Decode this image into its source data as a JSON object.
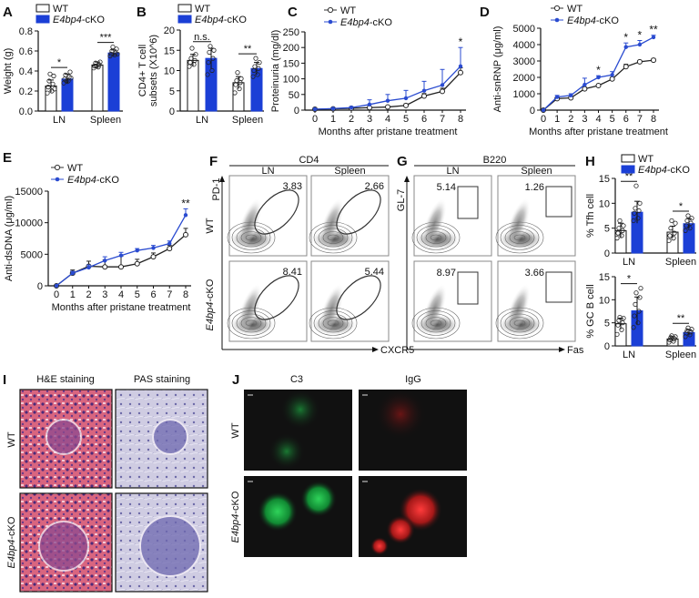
{
  "panel_labels": {
    "A": "A",
    "B": "B",
    "C": "C",
    "D": "D",
    "E": "E",
    "F": "F",
    "G": "G",
    "H": "H",
    "I": "I",
    "J": "J"
  },
  "colors": {
    "wt_fill": "#ffffff",
    "ko_fill": "#1b3fd6",
    "ko_line": "#2a4bd0",
    "wt_line": "#222222"
  },
  "chart_data": [
    {
      "id": "A",
      "type": "bar",
      "ylabel": "Weight (g)",
      "ylim": [
        0,
        0.8
      ],
      "yticks": [
        0,
        0.2,
        0.4,
        0.6,
        0.8
      ],
      "ytick_labels": [
        "0.0",
        "0.2",
        "0.4",
        "0.6",
        "0.8"
      ],
      "categories": [
        "LN",
        "Spleen"
      ],
      "significance": [
        "*",
        "***"
      ],
      "series": [
        {
          "name": "WT",
          "mean": [
            0.25,
            0.46
          ],
          "sd": [
            0.06,
            0.03
          ],
          "points": [
            [
              0.18,
              0.2,
              0.24,
              0.27,
              0.3,
              0.35,
              0.37,
              0.22
            ],
            [
              0.43,
              0.44,
              0.45,
              0.46,
              0.48,
              0.49,
              0.45
            ]
          ]
        },
        {
          "name_italic": "E4bp4",
          "name_suffix": "-cKO",
          "mean": [
            0.32,
            0.58
          ],
          "sd": [
            0.05,
            0.03
          ],
          "points": [
            [
              0.28,
              0.3,
              0.32,
              0.34,
              0.36,
              0.39,
              0.3,
              0.33
            ],
            [
              0.55,
              0.56,
              0.57,
              0.58,
              0.6,
              0.62,
              0.64,
              0.57
            ]
          ]
        }
      ]
    },
    {
      "id": "B",
      "type": "bar",
      "ylabel": "CD4+ T cell",
      "ylabel2": "subsets (X10^6)",
      "ylim": [
        0,
        20
      ],
      "yticks": [
        0,
        5,
        10,
        15,
        20
      ],
      "ytick_labels": [
        "0",
        "5",
        "10",
        "15",
        "20"
      ],
      "categories": [
        "LN",
        "Spleen"
      ],
      "significance": [
        "n.s.",
        "**"
      ],
      "series": [
        {
          "name": "WT",
          "mean": [
            12.5,
            7
          ],
          "sd": [
            1.5,
            1.5
          ],
          "points": [
            [
              11,
              11.5,
              12,
              12.5,
              13,
              14,
              15.5
            ],
            [
              4.5,
              5.5,
              6.5,
              7,
              7.5,
              8,
              9.5
            ]
          ]
        },
        {
          "name_italic": "E4bp4",
          "name_suffix": "-cKO",
          "mean": [
            13,
            10.5
          ],
          "sd": [
            2.5,
            1.5
          ],
          "points": [
            [
              9,
              10,
              12,
              13,
              14.5,
              15,
              16
            ],
            [
              8.5,
              9,
              10,
              10.5,
              11,
              12,
              13
            ]
          ]
        }
      ]
    },
    {
      "id": "C",
      "type": "line",
      "ylabel": "Proteinuria (mg/dl)",
      "xlabel": "Months after pristane treatment",
      "ylim": [
        0,
        250
      ],
      "yticks": [
        0,
        50,
        100,
        150,
        200,
        250
      ],
      "x": [
        0,
        1,
        2,
        3,
        4,
        5,
        6,
        7,
        8
      ],
      "significance": {
        "8": "*"
      },
      "series": [
        {
          "name": "WT",
          "values": [
            3,
            4,
            6,
            8,
            10,
            15,
            45,
            60,
            120
          ],
          "err": [
            1,
            1,
            2,
            3,
            4,
            5,
            8,
            10,
            15
          ]
        },
        {
          "name_italic": "E4bp4",
          "name_suffix": "-cKO",
          "values": [
            3,
            5,
            8,
            18,
            30,
            38,
            62,
            80,
            140
          ],
          "err": [
            1,
            1,
            3,
            15,
            20,
            25,
            30,
            50,
            60
          ]
        }
      ]
    },
    {
      "id": "D",
      "type": "line",
      "ylabel": "Anti-snRNP (μg/ml)",
      "xlabel": "Months after pristane treatment",
      "ylim": [
        0,
        5000
      ],
      "yticks": [
        0,
        1000,
        2000,
        3000,
        4000,
        5000
      ],
      "x": [
        0,
        1,
        2,
        3,
        4,
        5,
        6,
        7,
        8
      ],
      "significance": {
        "4": "*",
        "6": "*",
        "7": "*",
        "8": "**"
      },
      "series": [
        {
          "name": "WT",
          "values": [
            0,
            700,
            750,
            1300,
            1500,
            1900,
            2650,
            2950,
            3050
          ],
          "err": [
            0,
            80,
            80,
            100,
            80,
            100,
            150,
            80,
            100
          ]
        },
        {
          "name_italic": "E4bp4",
          "name_suffix": "-cKO",
          "values": [
            0,
            800,
            900,
            1550,
            2000,
            2150,
            3850,
            4000,
            4450
          ],
          "err": [
            0,
            100,
            100,
            400,
            100,
            200,
            250,
            250,
            120
          ]
        }
      ]
    },
    {
      "id": "E",
      "type": "line",
      "ylabel": "Anti-dsDNA (μg/ml)",
      "xlabel": "Months after pristane treatment",
      "ylim": [
        0,
        15000
      ],
      "yticks": [
        0,
        5000,
        10000,
        15000
      ],
      "x": [
        0,
        1,
        2,
        3,
        4,
        5,
        6,
        7,
        8
      ],
      "significance": {
        "8": "**"
      },
      "series": [
        {
          "name": "WT",
          "values": [
            0,
            2000,
            3100,
            3000,
            3000,
            3500,
            4600,
            5900,
            8100
          ],
          "err": [
            0,
            500,
            800,
            1100,
            1700,
            700,
            600,
            500,
            1000
          ]
        },
        {
          "name_italic": "E4bp4",
          "name_suffix": "-cKO",
          "values": [
            0,
            2000,
            2900,
            4000,
            4800,
            5600,
            6000,
            6700,
            11200
          ],
          "err": [
            0,
            300,
            400,
            600,
            500,
            300,
            400,
            400,
            1000
          ]
        }
      ]
    },
    {
      "id": "H-top",
      "type": "bar",
      "ylabel": "% Tfh cell",
      "ylim": [
        0,
        15
      ],
      "yticks": [
        0,
        5,
        10,
        15
      ],
      "ytick_labels": [
        "0",
        "5",
        "10",
        "15"
      ],
      "categories": [
        "LN",
        "Spleen"
      ],
      "significance": [
        "**",
        "*"
      ],
      "series": [
        {
          "name": "WT",
          "mean": [
            4.5,
            4.2
          ],
          "sd": [
            1.5,
            1.2
          ],
          "points": [
            [
              3,
              3.5,
              4,
              4.5,
              5,
              5.5,
              6.5
            ],
            [
              2.5,
              3,
              3.5,
              4,
              5,
              6,
              6.5
            ]
          ]
        },
        {
          "name_italic": "E4bp4",
          "name_suffix": "-cKO",
          "mean": [
            8.2,
            5.9
          ],
          "sd": [
            2.2,
            1
          ],
          "points": [
            [
              6.5,
              7,
              8,
              8.5,
              9,
              10,
              13.5
            ],
            [
              4.5,
              5,
              5.5,
              6,
              6.5,
              7,
              7.5
            ]
          ]
        }
      ]
    },
    {
      "id": "H-bottom",
      "type": "bar",
      "ylabel": "% GC B cell",
      "ylim": [
        0,
        15
      ],
      "yticks": [
        0,
        5,
        10,
        15
      ],
      "ytick_labels": [
        "0",
        "5",
        "10",
        "15"
      ],
      "categories": [
        "LN",
        "Spleen"
      ],
      "significance": [
        "*",
        "**"
      ],
      "series": [
        {
          "name": "WT",
          "mean": [
            4.8,
            1.5
          ],
          "sd": [
            1.2,
            0.5
          ],
          "points": [
            [
              2.5,
              3.5,
              4.5,
              5,
              5.5,
              6,
              6.2
            ],
            [
              0.8,
              1,
              1.3,
              1.5,
              1.8,
              2,
              2.2
            ]
          ]
        },
        {
          "name_italic": "E4bp4",
          "name_suffix": "-cKO",
          "mean": [
            7.6,
            2.9
          ],
          "sd": [
            3,
            0.6
          ],
          "points": [
            [
              4,
              5,
              6.5,
              7.5,
              9,
              10.5,
              11.5,
              12.5
            ],
            [
              2,
              2.4,
              2.8,
              3,
              3.3,
              3.6,
              3.9
            ]
          ]
        }
      ]
    }
  ],
  "flow": {
    "F": {
      "header": "CD4",
      "cols": [
        "LN",
        "Spleen"
      ],
      "rows": [
        "WT",
        "E4bp4-cKO"
      ],
      "row_italic": "E4bp4",
      "row_suffix": "-cKO",
      "x_axis": "CXCR5",
      "y_axis": "PD-1",
      "values": [
        [
          "3.83",
          "2.66"
        ],
        [
          "8.41",
          "5.44"
        ]
      ]
    },
    "G": {
      "header": "B220",
      "cols": [
        "LN",
        "Spleen"
      ],
      "x_axis": "Fas",
      "y_axis": "GL-7",
      "values": [
        [
          "5.14",
          "1.26"
        ],
        [
          "8.97",
          "3.66"
        ]
      ]
    }
  },
  "histology": {
    "I": {
      "cols": [
        "H&E staining",
        "PAS staining"
      ],
      "rows": [
        "WT"
      ],
      "row2_italic": "E4bp4",
      "row2_suffix": "-cKO"
    },
    "J": {
      "cols": [
        "C3",
        "IgG"
      ],
      "rows": [
        "WT"
      ],
      "row2_italic": "E4bp4",
      "row2_suffix": "-cKO"
    }
  }
}
